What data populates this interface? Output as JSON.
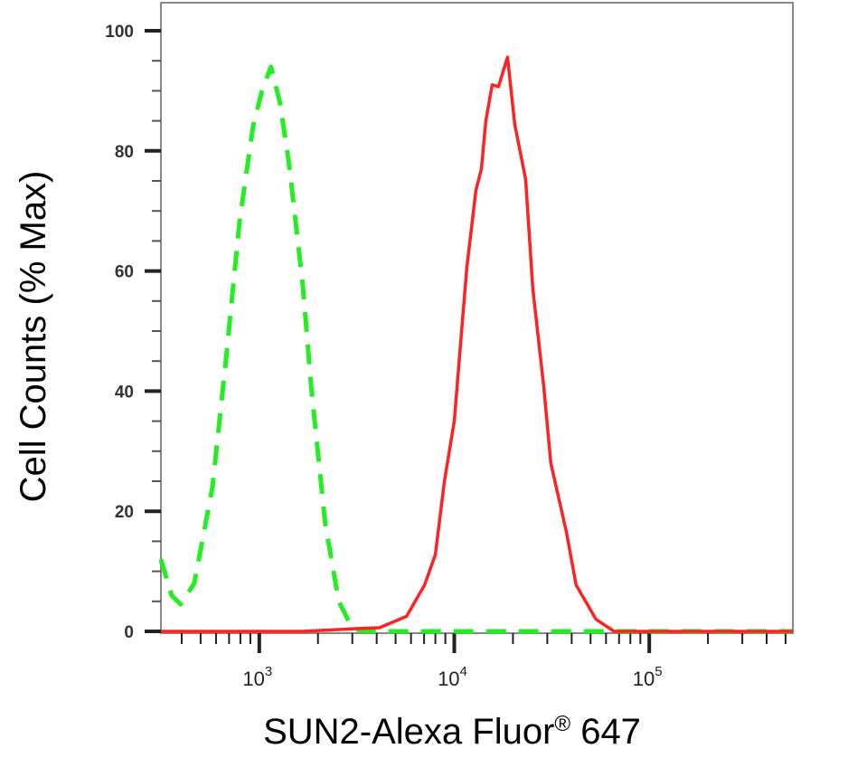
{
  "chart_data": {
    "type": "line",
    "title": "",
    "xlabel": "SUN2-Alexa Fluor",
    "xlabel_mark": "®",
    "xlabel_suffix": " 647",
    "ylabel": "Cell Counts (% Max)",
    "xscale": "log",
    "xlim": [
      313,
      545000
    ],
    "ylim": [
      0,
      100
    ],
    "grid": false,
    "legend": "none",
    "y_ticks": [
      0,
      20,
      40,
      60,
      80,
      100
    ],
    "y_tick_labels": [
      "0",
      "20",
      "40",
      "60",
      "80",
      "100"
    ],
    "x_ticks": [
      1000,
      10000,
      100000
    ],
    "x_tick_labels": [
      {
        "base": "10",
        "exp": "3"
      },
      {
        "base": "10",
        "exp": "4"
      },
      {
        "base": "10",
        "exp": "5"
      }
    ],
    "series": [
      {
        "color": "#22ee22",
        "style": "dashed",
        "x": [
          313,
          355,
          395,
          464,
          575,
          674,
          791,
          928,
          1032,
          1148,
          1277,
          1420,
          1668,
          1855,
          2178,
          2557,
          3003,
          3500,
          545000
        ],
        "y": [
          12,
          6,
          4.5,
          8,
          24,
          45,
          68,
          84,
          90,
          94,
          88,
          78,
          58,
          40,
          18,
          5,
          0.5,
          0,
          0
        ]
      },
      {
        "color": "#ff2222",
        "style": "solid",
        "x": [
          313,
          1670,
          3330,
          4130,
          5690,
          7040,
          8000,
          8900,
          10000,
          10780,
          11600,
          12910,
          13770,
          14520,
          15640,
          16860,
          18760,
          20420,
          23210,
          25290,
          28710,
          31270,
          37490,
          42170,
          53330,
          65960,
          545000
        ],
        "y": [
          0,
          0,
          0.5,
          0.6,
          2.5,
          7.7,
          12.8,
          25,
          35,
          48,
          60.6,
          73.4,
          77,
          85,
          91,
          90.7,
          95.6,
          84.4,
          75.3,
          57,
          41,
          28,
          16.7,
          7.7,
          2,
          0,
          0
        ]
      }
    ]
  }
}
